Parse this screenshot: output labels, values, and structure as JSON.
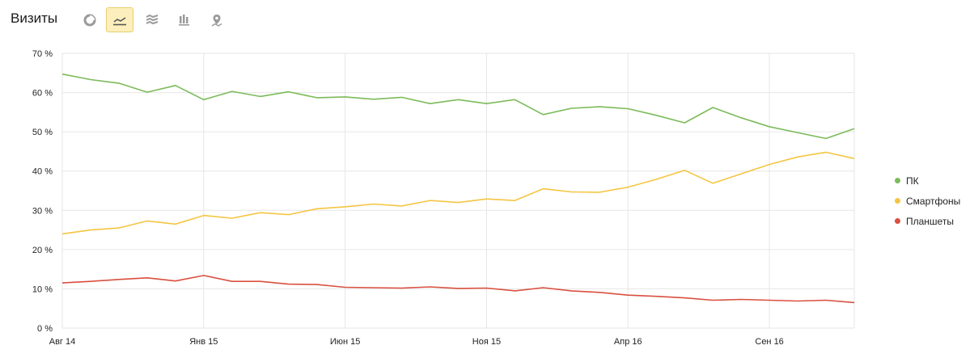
{
  "header": {
    "title": "Визиты"
  },
  "toolbar": {
    "buttons": [
      {
        "name": "pie-chart-button",
        "icon": "pie-chart-icon",
        "active": false
      },
      {
        "name": "line-chart-button",
        "icon": "line-chart-icon",
        "active": true
      },
      {
        "name": "area-chart-button",
        "icon": "stacked-area-icon",
        "active": false
      },
      {
        "name": "bar-chart-button",
        "icon": "bar-chart-icon",
        "active": false
      },
      {
        "name": "map-button",
        "icon": "map-pin-icon",
        "active": false
      }
    ]
  },
  "chart_data": {
    "type": "line",
    "title": "Визиты",
    "xlabel": "",
    "ylabel": "",
    "ylim": [
      0,
      70
    ],
    "yticks": [
      0,
      10,
      20,
      30,
      40,
      50,
      60,
      70
    ],
    "yticks_labels": [
      "0 %",
      "10 %",
      "20 %",
      "30 %",
      "40 %",
      "50 %",
      "60 %",
      "70 %"
    ],
    "xticks_labels": [
      "Авг 14",
      "Янв 15",
      "Июн 15",
      "Ноя 15",
      "Апр 16",
      "Сен 16"
    ],
    "grid": true,
    "legend_position": "right",
    "x": [
      "2014-08",
      "2014-09",
      "2014-10",
      "2014-11",
      "2014-12",
      "2015-01",
      "2015-02",
      "2015-03",
      "2015-04",
      "2015-05",
      "2015-06",
      "2015-07",
      "2015-08",
      "2015-09",
      "2015-10",
      "2015-11",
      "2015-12",
      "2016-01",
      "2016-02",
      "2016-03",
      "2016-04",
      "2016-05",
      "2016-06",
      "2016-07",
      "2016-08",
      "2016-09",
      "2016-10",
      "2016-11",
      "2016-12"
    ],
    "series": [
      {
        "name": "ПК",
        "color": "#7cbb5a",
        "values": [
          64.7,
          63.3,
          62.4,
          60.1,
          61.8,
          58.2,
          60.3,
          59.0,
          60.2,
          58.7,
          58.9,
          58.3,
          58.8,
          57.2,
          58.2,
          57.2,
          58.2,
          54.4,
          56.0,
          56.4,
          55.9,
          54.2,
          52.3,
          56.2,
          53.6,
          51.3,
          49.8,
          48.3,
          50.8
        ]
      },
      {
        "name": "Смартфоны",
        "color": "#f5c542",
        "values": [
          24.0,
          25.0,
          25.5,
          27.3,
          26.5,
          28.7,
          28.0,
          29.4,
          28.9,
          30.4,
          30.9,
          31.6,
          31.1,
          32.5,
          32.0,
          32.9,
          32.5,
          35.5,
          34.7,
          34.6,
          35.9,
          37.9,
          40.2,
          36.9,
          39.3,
          41.7,
          43.6,
          44.8,
          43.2
        ]
      },
      {
        "name": "Планшеты",
        "color": "#d9503f",
        "values": [
          11.5,
          11.9,
          12.4,
          12.8,
          12.0,
          13.4,
          11.9,
          11.9,
          11.2,
          11.1,
          10.4,
          10.3,
          10.2,
          10.5,
          10.1,
          10.2,
          9.5,
          10.3,
          9.5,
          9.1,
          8.4,
          8.1,
          7.7,
          7.1,
          7.3,
          7.1,
          6.9,
          7.1,
          6.5
        ]
      }
    ]
  }
}
